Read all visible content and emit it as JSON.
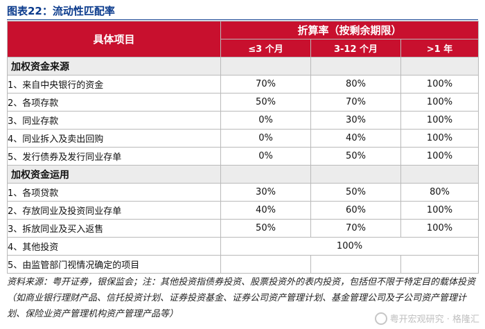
{
  "title": "图表22：流动性匹配率",
  "table": {
    "item_header": "具体项目",
    "group_header": "折算率（按剩余期限）",
    "columns": [
      "≤3 个月",
      "3-12 个月",
      ">1 年"
    ],
    "sections": [
      {
        "label": "加权资金来源",
        "rows": [
          {
            "item": "1、来自中央银行的资金",
            "values": [
              "70%",
              "80%",
              "100%"
            ]
          },
          {
            "item": "2、各项存款",
            "values": [
              "50%",
              "70%",
              "100%"
            ]
          },
          {
            "item": "3、同业存款",
            "values": [
              "0%",
              "30%",
              "100%"
            ]
          },
          {
            "item": "4、同业拆入及卖出回购",
            "values": [
              "0%",
              "40%",
              "100%"
            ]
          },
          {
            "item": "5、发行债券及发行同业存单",
            "values": [
              "0%",
              "50%",
              "100%"
            ]
          }
        ]
      },
      {
        "label": "加权资金运用",
        "rows": [
          {
            "item": "1、各项贷款",
            "values": [
              "30%",
              "50%",
              "80%"
            ]
          },
          {
            "item": "2、存放同业及投资同业存单",
            "values": [
              "40%",
              "60%",
              "100%"
            ]
          },
          {
            "item": "3、拆放同业及买入返售",
            "values": [
              "50%",
              "70%",
              "100%"
            ]
          },
          {
            "item": "4、其他投资",
            "merged": "100%"
          },
          {
            "item": "5、由监管部门视情况确定的项目",
            "values": [
              "",
              "",
              ""
            ]
          }
        ]
      }
    ]
  },
  "footnote": "资料来源：粤开证券，银保监会；注：其他投资指债券投资、股票投资外的表内投资，包括但不限于特定目的载体投资（如商业银行理财产品、信托投资计划、证券投资基金、证券公司资产管理计划、基金管理公司及子公司资产管理计划、保险业资产管理机构资产管理产品等）",
  "watermark": "粤开宏观研究 · 格隆汇"
}
